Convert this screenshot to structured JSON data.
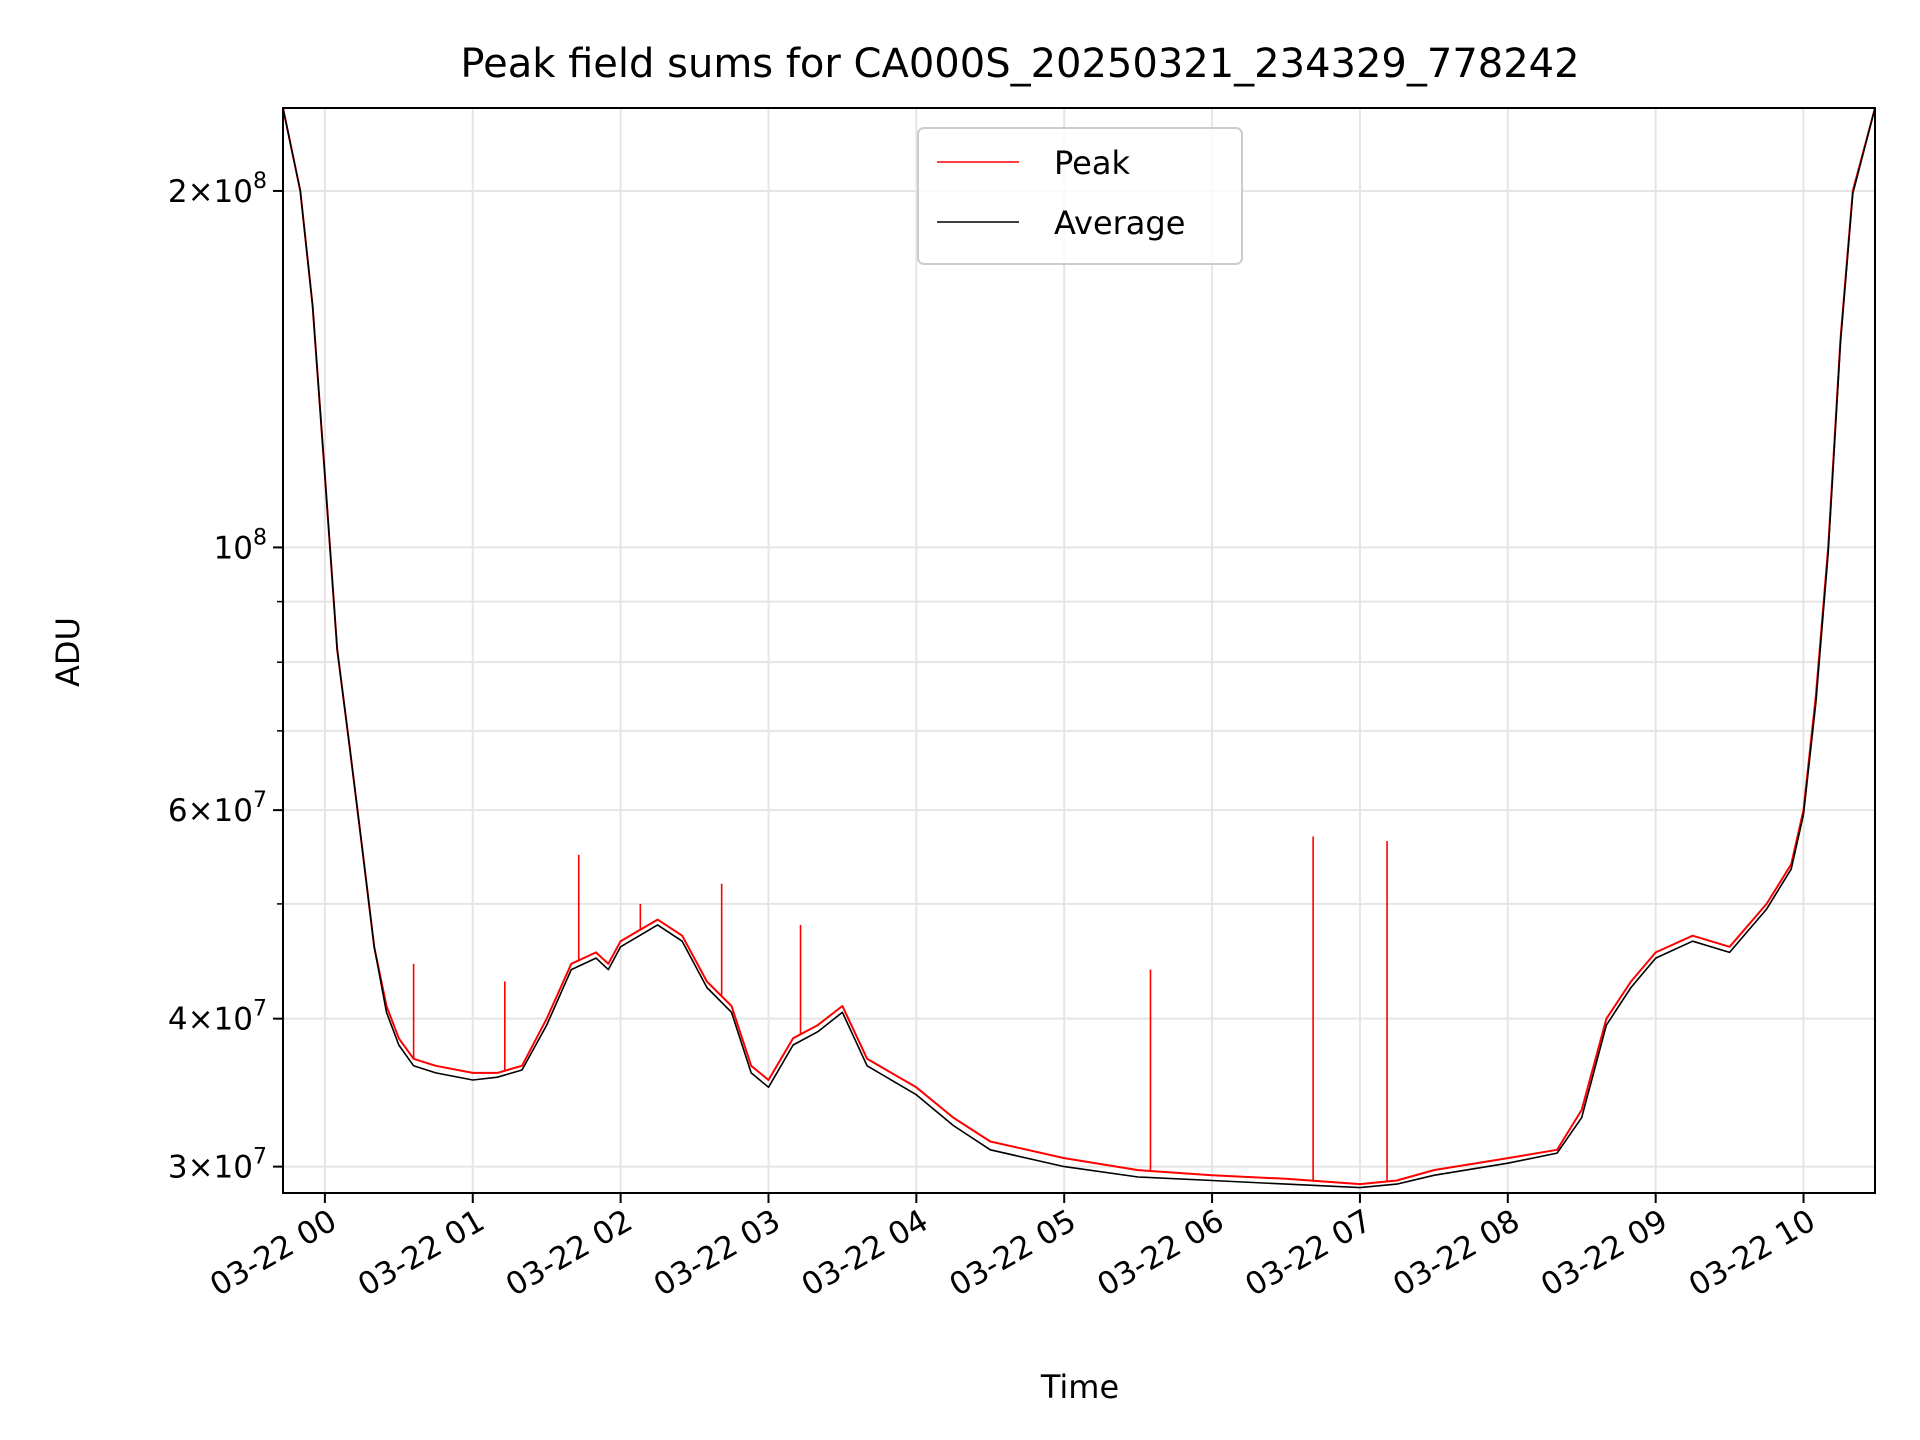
{
  "chart_data": {
    "type": "line",
    "title": "Peak field sums for CA000S_20250321_234329_778242",
    "xlabel": "Time",
    "ylabel": "ADU",
    "yscale": "log",
    "ylim": [
      28500000,
      235000000
    ],
    "xlim": [
      "2025-03-21 23:43",
      "2025-03-22 10:29"
    ],
    "x_tick_labels": [
      "03-22 00",
      "03-22 01",
      "03-22 02",
      "03-22 03",
      "03-22 04",
      "03-22 05",
      "03-22 06",
      "03-22 07",
      "03-22 08",
      "03-22 09",
      "03-22 10"
    ],
    "y_tick_labels": [
      {
        "value": 30000000,
        "mantissa": "3",
        "exponent": "7"
      },
      {
        "value": 40000000,
        "mantissa": "4",
        "exponent": "7"
      },
      {
        "value": 60000000,
        "mantissa": "6",
        "exponent": "7"
      },
      {
        "value": 100000000,
        "mantissa": "",
        "exponent": "8"
      },
      {
        "value": 200000000,
        "mantissa": "2",
        "exponent": "8"
      }
    ],
    "y_minor_ticks": [
      50000000,
      70000000,
      80000000,
      90000000
    ],
    "grid": true,
    "legend_position": "upper center",
    "series": [
      {
        "name": "Peak",
        "color": "#ff0000",
        "points": [
          [
            "2025-03-21 23:43",
            235000000
          ],
          [
            "2025-03-21 23:50",
            200000000
          ],
          [
            "2025-03-21 23:55",
            160000000
          ],
          [
            "2025-03-22 00:00",
            115000000
          ],
          [
            "2025-03-22 00:05",
            82000000
          ],
          [
            "2025-03-22 00:10",
            68000000
          ],
          [
            "2025-03-22 00:15",
            56000000
          ],
          [
            "2025-03-22 00:20",
            46000000
          ],
          [
            "2025-03-22 00:25",
            41000000
          ],
          [
            "2025-03-22 00:30",
            38500000
          ],
          [
            "2025-03-22 00:36",
            37000000
          ],
          [
            "2025-03-22 00:45",
            36500000
          ],
          [
            "2025-03-22 01:00",
            36000000
          ],
          [
            "2025-03-22 01:10",
            36000000
          ],
          [
            "2025-03-22 01:20",
            36500000
          ],
          [
            "2025-03-22 01:30",
            40000000
          ],
          [
            "2025-03-22 01:40",
            44500000
          ],
          [
            "2025-03-22 01:50",
            45500000
          ],
          [
            "2025-03-22 01:55",
            44500000
          ],
          [
            "2025-03-22 02:00",
            46500000
          ],
          [
            "2025-03-22 02:15",
            48500000
          ],
          [
            "2025-03-22 02:25",
            47000000
          ],
          [
            "2025-03-22 02:35",
            43000000
          ],
          [
            "2025-03-22 02:45",
            41000000
          ],
          [
            "2025-03-22 02:53",
            36500000
          ],
          [
            "2025-03-22 03:00",
            35500000
          ],
          [
            "2025-03-22 03:10",
            38500000
          ],
          [
            "2025-03-22 03:20",
            39500000
          ],
          [
            "2025-03-22 03:30",
            41000000
          ],
          [
            "2025-03-22 03:40",
            37000000
          ],
          [
            "2025-03-22 04:00",
            35000000
          ],
          [
            "2025-03-22 04:15",
            33000000
          ],
          [
            "2025-03-22 04:30",
            31500000
          ],
          [
            "2025-03-22 05:00",
            30500000
          ],
          [
            "2025-03-22 05:30",
            29800000
          ],
          [
            "2025-03-22 06:00",
            29500000
          ],
          [
            "2025-03-22 06:30",
            29300000
          ],
          [
            "2025-03-22 07:00",
            29000000
          ],
          [
            "2025-03-22 07:15",
            29200000
          ],
          [
            "2025-03-22 07:30",
            29800000
          ],
          [
            "2025-03-22 08:00",
            30500000
          ],
          [
            "2025-03-22 08:20",
            31000000
          ],
          [
            "2025-03-22 08:30",
            33500000
          ],
          [
            "2025-03-22 08:40",
            40000000
          ],
          [
            "2025-03-22 08:50",
            43000000
          ],
          [
            "2025-03-22 09:00",
            45500000
          ],
          [
            "2025-03-22 09:15",
            47000000
          ],
          [
            "2025-03-22 09:30",
            46000000
          ],
          [
            "2025-03-22 09:45",
            50000000
          ],
          [
            "2025-03-22 09:55",
            54000000
          ],
          [
            "2025-03-22 10:00",
            60000000
          ],
          [
            "2025-03-22 10:05",
            75000000
          ],
          [
            "2025-03-22 10:10",
            100000000
          ],
          [
            "2025-03-22 10:15",
            150000000
          ],
          [
            "2025-03-22 10:20",
            200000000
          ],
          [
            "2025-03-22 10:29",
            235000000
          ]
        ],
        "spikes": [
          [
            "2025-03-22 00:36",
            44500000
          ],
          [
            "2025-03-22 01:13",
            43000000
          ],
          [
            "2025-03-22 01:43",
            55000000
          ],
          [
            "2025-03-22 02:08",
            50000000
          ],
          [
            "2025-03-22 02:41",
            52000000
          ],
          [
            "2025-03-22 03:13",
            48000000
          ],
          [
            "2025-03-22 05:35",
            44000000
          ],
          [
            "2025-03-22 06:41",
            57000000
          ],
          [
            "2025-03-22 07:11",
            56500000
          ]
        ]
      },
      {
        "name": "Average",
        "color": "#000000",
        "points": [
          [
            "2025-03-21 23:43",
            235000000
          ],
          [
            "2025-03-21 23:50",
            200000000
          ],
          [
            "2025-03-21 23:55",
            160000000
          ],
          [
            "2025-03-22 00:00",
            115000000
          ],
          [
            "2025-03-22 00:05",
            82000000
          ],
          [
            "2025-03-22 00:10",
            68000000
          ],
          [
            "2025-03-22 00:15",
            56000000
          ],
          [
            "2025-03-22 00:20",
            46000000
          ],
          [
            "2025-03-22 00:25",
            40500000
          ],
          [
            "2025-03-22 00:30",
            38000000
          ],
          [
            "2025-03-22 00:36",
            36500000
          ],
          [
            "2025-03-22 00:45",
            36000000
          ],
          [
            "2025-03-22 01:00",
            35500000
          ],
          [
            "2025-03-22 01:10",
            35700000
          ],
          [
            "2025-03-22 01:20",
            36200000
          ],
          [
            "2025-03-22 01:30",
            39500000
          ],
          [
            "2025-03-22 01:40",
            44000000
          ],
          [
            "2025-03-22 01:50",
            45000000
          ],
          [
            "2025-03-22 01:55",
            44000000
          ],
          [
            "2025-03-22 02:00",
            46000000
          ],
          [
            "2025-03-22 02:15",
            48000000
          ],
          [
            "2025-03-22 02:25",
            46500000
          ],
          [
            "2025-03-22 02:35",
            42500000
          ],
          [
            "2025-03-22 02:45",
            40500000
          ],
          [
            "2025-03-22 02:53",
            36000000
          ],
          [
            "2025-03-22 03:00",
            35000000
          ],
          [
            "2025-03-22 03:10",
            38000000
          ],
          [
            "2025-03-22 03:20",
            39000000
          ],
          [
            "2025-03-22 03:30",
            40500000
          ],
          [
            "2025-03-22 03:40",
            36500000
          ],
          [
            "2025-03-22 04:00",
            34500000
          ],
          [
            "2025-03-22 04:15",
            32500000
          ],
          [
            "2025-03-22 04:30",
            31000000
          ],
          [
            "2025-03-22 05:00",
            30000000
          ],
          [
            "2025-03-22 05:30",
            29400000
          ],
          [
            "2025-03-22 06:00",
            29200000
          ],
          [
            "2025-03-22 06:30",
            29000000
          ],
          [
            "2025-03-22 07:00",
            28800000
          ],
          [
            "2025-03-22 07:15",
            29000000
          ],
          [
            "2025-03-22 07:30",
            29500000
          ],
          [
            "2025-03-22 08:00",
            30200000
          ],
          [
            "2025-03-22 08:20",
            30800000
          ],
          [
            "2025-03-22 08:30",
            33000000
          ],
          [
            "2025-03-22 08:40",
            39500000
          ],
          [
            "2025-03-22 08:50",
            42500000
          ],
          [
            "2025-03-22 09:00",
            45000000
          ],
          [
            "2025-03-22 09:15",
            46500000
          ],
          [
            "2025-03-22 09:30",
            45500000
          ],
          [
            "2025-03-22 09:45",
            49500000
          ],
          [
            "2025-03-22 09:55",
            53500000
          ],
          [
            "2025-03-22 10:00",
            59500000
          ],
          [
            "2025-03-22 10:05",
            74000000
          ],
          [
            "2025-03-22 10:10",
            99000000
          ],
          [
            "2025-03-22 10:15",
            149000000
          ],
          [
            "2025-03-22 10:20",
            199000000
          ],
          [
            "2025-03-22 10:29",
            235000000
          ]
        ]
      }
    ]
  }
}
